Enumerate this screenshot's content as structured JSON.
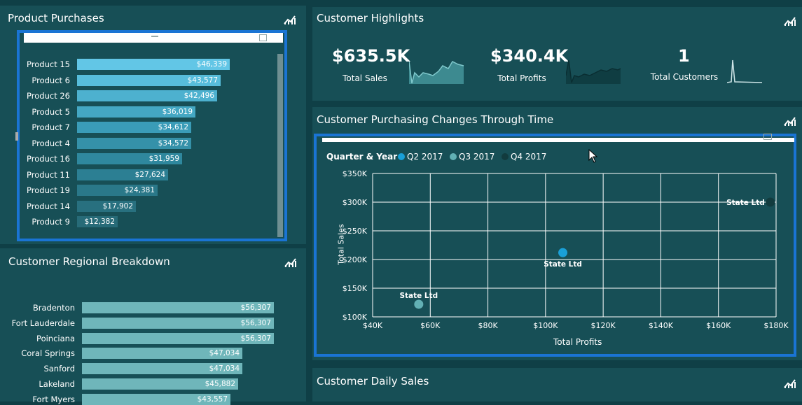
{
  "product_purchases": {
    "title": "Product Purchases",
    "rows": [
      {
        "label": "Product 15",
        "value": "$46,339"
      },
      {
        "label": "Product 6",
        "value": "$43,577"
      },
      {
        "label": "Product 26",
        "value": "$42,496"
      },
      {
        "label": "Product 5",
        "value": "$36,019"
      },
      {
        "label": "Product 7",
        "value": "$34,612"
      },
      {
        "label": "Product 4",
        "value": "$34,572"
      },
      {
        "label": "Product 16",
        "value": "$31,959"
      },
      {
        "label": "Product 11",
        "value": "$27,624"
      },
      {
        "label": "Product 19",
        "value": "$24,381"
      },
      {
        "label": "Product 14",
        "value": "$17,902"
      },
      {
        "label": "Product 9",
        "value": "$12,382"
      }
    ]
  },
  "regional_breakdown": {
    "title": "Customer Regional Breakdown",
    "rows": [
      {
        "label": "Bradenton",
        "value": "$56,307"
      },
      {
        "label": "Fort Lauderdale",
        "value": "$56,307"
      },
      {
        "label": "Poinciana",
        "value": "$56,307"
      },
      {
        "label": "Coral Springs",
        "value": "$47,034"
      },
      {
        "label": "Sanford",
        "value": "$47,034"
      },
      {
        "label": "Lakeland",
        "value": "$45,882"
      },
      {
        "label": "Fort Myers",
        "value": "$43,557"
      }
    ]
  },
  "highlights": {
    "title": "Customer Highlights",
    "total_sales_value": "$635.5K",
    "total_sales_label": "Total Sales",
    "total_profits_value": "$340.4K",
    "total_profits_label": "Total Profits",
    "total_customers_value": "1",
    "total_customers_label": "Total Customers"
  },
  "purchasing_changes": {
    "title": "Customer Purchasing Changes Through Time",
    "legend_title": "Quarter & Year",
    "legend": [
      {
        "name": "Q2 2017",
        "color": "#1aa0d8"
      },
      {
        "name": "Q3 2017",
        "color": "#62b0b4"
      },
      {
        "name": "Q4 2017",
        "color": "#123b3e"
      }
    ],
    "x_ticks": [
      "$40K",
      "$60K",
      "$80K",
      "$100K",
      "$120K",
      "$140K",
      "$160K",
      "$180K"
    ],
    "y_ticks": [
      "$100K",
      "$150K",
      "$200K",
      "$250K",
      "$300K",
      "$350K"
    ],
    "xlabel": "Total Profits",
    "ylabel": "Total Sales"
  },
  "daily_sales": {
    "title": "Customer Daily Sales"
  },
  "chart_data": [
    {
      "type": "bar",
      "title": "Product Purchases",
      "categories": [
        "Product 15",
        "Product 6",
        "Product 26",
        "Product 5",
        "Product 7",
        "Product 4",
        "Product 16",
        "Product 11",
        "Product 19",
        "Product 14",
        "Product 9"
      ],
      "values": [
        46339,
        43577,
        42496,
        36019,
        34612,
        34572,
        31959,
        27624,
        24381,
        17902,
        12382
      ],
      "orientation": "horizontal"
    },
    {
      "type": "bar",
      "title": "Customer Regional Breakdown",
      "categories": [
        "Bradenton",
        "Fort Lauderdale",
        "Poinciana",
        "Coral Springs",
        "Sanford",
        "Lakeland",
        "Fort Myers"
      ],
      "values": [
        56307,
        56307,
        56307,
        47034,
        47034,
        45882,
        43557
      ],
      "orientation": "horizontal"
    },
    {
      "type": "scatter",
      "title": "Customer Purchasing Changes Through Time",
      "xlabel": "Total Profits",
      "ylabel": "Total Sales",
      "xlim": [
        40000,
        180000
      ],
      "ylim": [
        100000,
        350000
      ],
      "grid": true,
      "legend_position": "top-left",
      "series": [
        {
          "name": "Q2 2017",
          "points": [
            {
              "x": 106000,
              "y": 212000,
              "label": "State Ltd"
            }
          ]
        },
        {
          "name": "Q3 2017",
          "points": [
            {
              "x": 56000,
              "y": 122000,
              "label": "State Ltd"
            }
          ]
        },
        {
          "name": "Q4 2017",
          "points": [
            {
              "x": 178000,
              "y": 300000,
              "label": "State Ltd"
            }
          ]
        }
      ]
    }
  ]
}
